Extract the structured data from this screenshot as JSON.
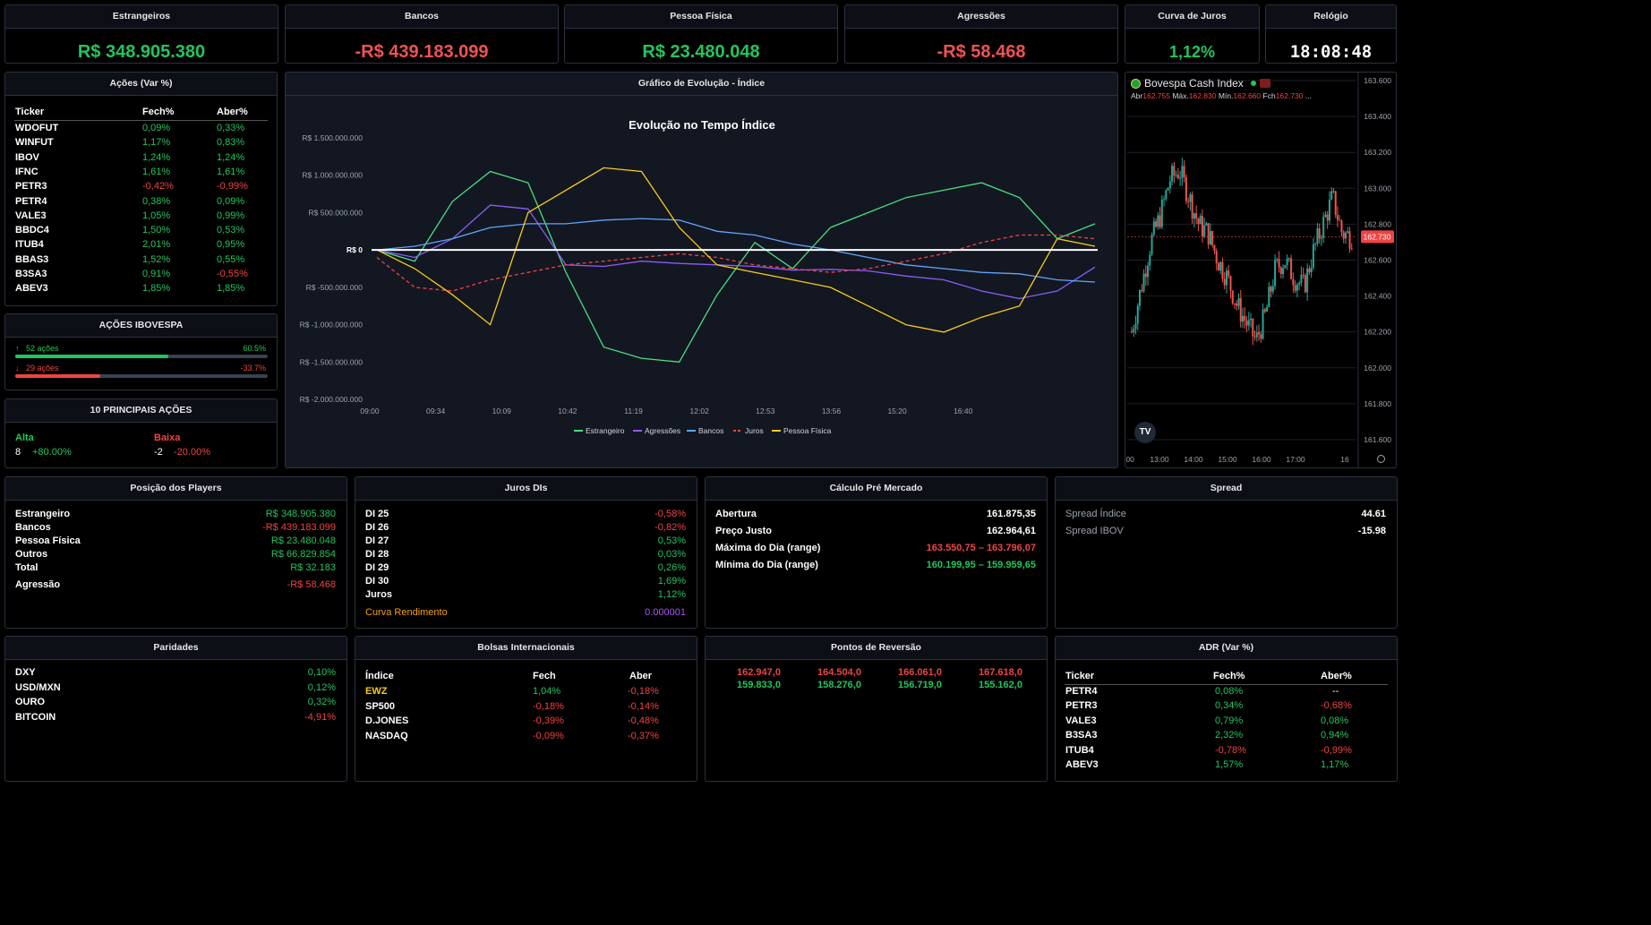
{
  "top_cards": [
    {
      "title": "Estrangeiros",
      "value": "R$ 348.905.380",
      "color": "#22c55e"
    },
    {
      "title": "Bancos",
      "value": "-R$ 439.183.099",
      "color": "#f05252"
    },
    {
      "title": "Pessoa Física",
      "value": "R$ 23.480.048",
      "color": "#22c55e"
    },
    {
      "title": "Agressões",
      "value": "-R$ 58.468",
      "color": "#f05252"
    },
    {
      "title": "Curva de Juros",
      "value": "1,12%",
      "color": "#22c55e"
    },
    {
      "title": "Relógio",
      "value": "18:08:48",
      "color": "#ffffff"
    }
  ],
  "acoes": {
    "title": "Ações (Var %)",
    "headers": [
      "Ticker",
      "Fech%",
      "Aber%"
    ],
    "rows": [
      {
        "t": "WDOFUT",
        "f": "0,09%",
        "a": "0,33%",
        "fc": "pos",
        "ac": "pos"
      },
      {
        "t": "WINFUT",
        "f": "1,17%",
        "a": "0,83%",
        "fc": "pos",
        "ac": "pos"
      },
      {
        "t": "IBOV",
        "f": "1,24%",
        "a": "1,24%",
        "fc": "pos",
        "ac": "pos"
      },
      {
        "t": "IFNC",
        "f": "1,61%",
        "a": "1,61%",
        "fc": "pos",
        "ac": "pos"
      },
      {
        "t": "PETR3",
        "f": "-0,42%",
        "a": "-0,99%",
        "fc": "neg",
        "ac": "neg"
      },
      {
        "t": "PETR4",
        "f": "0,38%",
        "a": "0,09%",
        "fc": "pos",
        "ac": "pos"
      },
      {
        "t": "VALE3",
        "f": "1,05%",
        "a": "0,99%",
        "fc": "pos",
        "ac": "pos"
      },
      {
        "t": "BBDC4",
        "f": "1,50%",
        "a": "0,53%",
        "fc": "pos",
        "ac": "pos"
      },
      {
        "t": "ITUB4",
        "f": "2,01%",
        "a": "0,95%",
        "fc": "pos",
        "ac": "pos"
      },
      {
        "t": "BBAS3",
        "f": "1,52%",
        "a": "0,55%",
        "fc": "pos",
        "ac": "pos"
      },
      {
        "t": "B3SA3",
        "f": "0,91%",
        "a": "-0,55%",
        "fc": "pos",
        "ac": "neg"
      },
      {
        "t": "ABEV3",
        "f": "1,85%",
        "a": "1,85%",
        "fc": "pos",
        "ac": "pos"
      }
    ]
  },
  "ibovespa": {
    "title": "AÇÕES IBOVESPA",
    "up_label": "52 ações",
    "up_pct": "60.5%",
    "up_frac": 0.605,
    "down_label": "29 ações",
    "down_pct": "-33.7%",
    "down_frac": 0.337
  },
  "top10": {
    "title": "10 PRINCIPAIS AÇÕES",
    "alta_label": "Alta",
    "baixa_label": "Baixa",
    "alta_count": "8",
    "alta_pct": "+80.00%",
    "baixa_count": "-2",
    "baixa_pct": "-20.00%"
  },
  "evolucao": {
    "panel_title": "Gráfico de Evolução - Índice"
  },
  "chart_data": [
    {
      "type": "line",
      "title": "Evolução no Tempo Índice",
      "x_ticks": [
        "09:00",
        "09:34",
        "10:09",
        "10:42",
        "11:19",
        "12:02",
        "12:53",
        "13:56",
        "15:20",
        "16:40"
      ],
      "y_ticks": [
        "R$ 1.500.000.000",
        "R$ 1.000.000.000",
        "R$ 500.000.000",
        "R$ 0",
        "R$ -500.000.000",
        "R$ -1.000.000.000",
        "R$ -1.500.000.000",
        "R$ -2.000.000.000"
      ],
      "ylim": [
        -2000000000,
        1500000000
      ],
      "legend_position": "bottom",
      "series": [
        {
          "name": "Estrangeiro",
          "color": "#4ade80",
          "values": [
            0,
            -150000000,
            650000000,
            1050000000,
            900000000,
            -300000000,
            -1300000000,
            -1450000000,
            -1500000000,
            -600000000,
            100000000,
            -250000000,
            300000000,
            500000000,
            700000000,
            800000000,
            900000000,
            700000000,
            150000000,
            350000000
          ]
        },
        {
          "name": "Agressões",
          "color": "#8b5cf6",
          "values": [
            0,
            -100000000,
            150000000,
            600000000,
            550000000,
            -200000000,
            -220000000,
            -150000000,
            -180000000,
            -200000000,
            -220000000,
            -270000000,
            -260000000,
            -280000000,
            -350000000,
            -400000000,
            -550000000,
            -650000000,
            -550000000,
            -230000000
          ]
        },
        {
          "name": "Bancos",
          "color": "#60a5fa",
          "values": [
            0,
            50000000,
            150000000,
            300000000,
            350000000,
            350000000,
            400000000,
            420000000,
            400000000,
            250000000,
            200000000,
            80000000,
            0,
            -100000000,
            -200000000,
            -250000000,
            -300000000,
            -320000000,
            -400000000,
            -430000000
          ]
        },
        {
          "name": "Juros",
          "color": "#ef4444",
          "values": [
            -100000000,
            -500000000,
            -550000000,
            -400000000,
            -300000000,
            -200000000,
            -150000000,
            -100000000,
            -50000000,
            -100000000,
            -200000000,
            -250000000,
            -300000000,
            -250000000,
            -150000000,
            -50000000,
            100000000,
            200000000,
            200000000,
            150000000
          ]
        },
        {
          "name": "Pessoa Física",
          "color": "#facc15",
          "values": [
            0,
            -250000000,
            -600000000,
            -1000000000,
            500000000,
            800000000,
            1100000000,
            1050000000,
            300000000,
            -200000000,
            -300000000,
            -400000000,
            -500000000,
            -750000000,
            -1000000000,
            -1100000000,
            -900000000,
            -750000000,
            150000000,
            50000000
          ]
        }
      ]
    },
    {
      "type": "candlestick",
      "title": "Bovespa Cash Index",
      "y_ticks": [
        "163.600",
        "163.400",
        "163.200",
        "163.000",
        "162.800",
        "162.600",
        "162.400",
        "162.200",
        "162.000",
        "161.800",
        "161.600"
      ],
      "ylim": [
        161.55,
        163.62
      ],
      "x_ticks": [
        ":00",
        "13:00",
        "14:00",
        "15:00",
        "16:00",
        "17:00",
        "16"
      ],
      "last_price": "162.730",
      "close_series": [
        162.2,
        162.45,
        162.7,
        162.85,
        163.05,
        163.1,
        162.95,
        162.8,
        162.75,
        162.6,
        162.5,
        162.35,
        162.25,
        162.15,
        162.3,
        162.55,
        162.6,
        162.5,
        162.45,
        162.65,
        162.8,
        162.95,
        162.75,
        162.73
      ]
    }
  ],
  "bovespa": {
    "name": "Bovespa Cash Index",
    "abr_label": "Abr",
    "abr": "162.755",
    "max_label": "Máx.",
    "max": "162.830",
    "min_label": "Mín.",
    "min": "162.660",
    "fch_label": "Fch",
    "fch": "162.730",
    "ellipsis": "...",
    "logo": "TV"
  },
  "players": {
    "title": "Posição dos Players",
    "rows": [
      {
        "l": "Estrangeiro",
        "v": "R$ 348.905.380",
        "c": "pos"
      },
      {
        "l": "Bancos",
        "v": "-R$ 439.183.099",
        "c": "neg"
      },
      {
        "l": "Pessoa Física",
        "v": "R$ 23.480.048",
        "c": "pos"
      },
      {
        "l": "Outros",
        "v": "R$ 66.829.854",
        "c": "pos"
      },
      {
        "l": "Total",
        "v": "R$ 32.183",
        "c": "pos"
      },
      {
        "l": "Agressão",
        "v": "-R$ 58.468",
        "c": "neg"
      }
    ]
  },
  "juros": {
    "title": "Juros DIs",
    "rows": [
      {
        "l": "DI 25",
        "v": "-0,58%",
        "c": "neg"
      },
      {
        "l": "DI 26",
        "v": "-0,82%",
        "c": "neg"
      },
      {
        "l": "DI 27",
        "v": "0,53%",
        "c": "pos"
      },
      {
        "l": "DI 28",
        "v": "0,03%",
        "c": "pos"
      },
      {
        "l": "DI 29",
        "v": "0,26%",
        "c": "pos"
      },
      {
        "l": "DI 30",
        "v": "1,69%",
        "c": "pos"
      },
      {
        "l": "Juros",
        "v": "1,12%",
        "c": "pos"
      }
    ],
    "curva_label": "Curva Rendimento",
    "curva_value": "0.000001"
  },
  "premercado": {
    "title": "Cálculo Pré Mercado",
    "rows": [
      {
        "l": "Abertura",
        "v": "161.875,35",
        "c": "white"
      },
      {
        "l": "Preço Justo",
        "v": "162.964,61",
        "c": "white"
      },
      {
        "l": "Máxima do Dia (range)",
        "v": "163.550,75 – 163.796,07",
        "c": "neg"
      },
      {
        "l": "Mínima do Dia (range)",
        "v": "160.199,95 – 159.959,65",
        "c": "pos"
      }
    ]
  },
  "spread": {
    "title": "Spread",
    "rows": [
      {
        "l": "Spread Índice",
        "v": "44.61"
      },
      {
        "l": "Spread IBOV",
        "v": "-15.98"
      }
    ]
  },
  "paridades": {
    "title": "Paridades",
    "rows": [
      {
        "l": "DXY",
        "v": "0,10%",
        "c": "pos"
      },
      {
        "l": "USD/MXN",
        "v": "0,12%",
        "c": "pos"
      },
      {
        "l": "OURO",
        "v": "0,32%",
        "c": "pos"
      },
      {
        "l": "BITCOIN",
        "v": "-4,91%",
        "c": "neg"
      }
    ]
  },
  "bolsas": {
    "title": "Bolsas Internacionais",
    "headers": [
      "Índice",
      "Fech",
      "Aber"
    ],
    "rows": [
      {
        "t": "EWZ",
        "f": "1,04%",
        "a": "-0,18%",
        "tc": "#facc15",
        "fc": "pos",
        "ac": "neg"
      },
      {
        "t": "SP500",
        "f": "-0,18%",
        "a": "-0,14%",
        "tc": "#ffffff",
        "fc": "neg",
        "ac": "neg"
      },
      {
        "t": "D.JONES",
        "f": "-0,39%",
        "a": "-0,48%",
        "tc": "#ffffff",
        "fc": "neg",
        "ac": "neg"
      },
      {
        "t": "NASDAQ",
        "f": "-0,09%",
        "a": "-0,37%",
        "tc": "#ffffff",
        "fc": "neg",
        "ac": "neg"
      }
    ]
  },
  "reversao": {
    "title": "Pontos de Reversão",
    "top": [
      "162.947,0",
      "164.504,0",
      "166.061,0",
      "167.618,0"
    ],
    "bottom": [
      "159.833,0",
      "158.276,0",
      "156.719,0",
      "155.162,0"
    ]
  },
  "adr": {
    "title": "ADR (Var %)",
    "headers": [
      "Ticker",
      "Fech%",
      "Aber%"
    ],
    "rows": [
      {
        "t": "PETR4",
        "f": "0,08%",
        "a": "--",
        "fc": "pos",
        "ac": "white"
      },
      {
        "t": "PETR3",
        "f": "0,34%",
        "a": "-0,68%",
        "fc": "pos",
        "ac": "neg"
      },
      {
        "t": "VALE3",
        "f": "0,79%",
        "a": "0,08%",
        "fc": "pos",
        "ac": "pos"
      },
      {
        "t": "B3SA3",
        "f": "2,32%",
        "a": "0,94%",
        "fc": "pos",
        "ac": "pos"
      },
      {
        "t": "ITUB4",
        "f": "-0,78%",
        "a": "-0,99%",
        "fc": "neg",
        "ac": "neg"
      },
      {
        "t": "ABEV3",
        "f": "1,57%",
        "a": "1,17%",
        "fc": "pos",
        "ac": "pos"
      }
    ]
  }
}
